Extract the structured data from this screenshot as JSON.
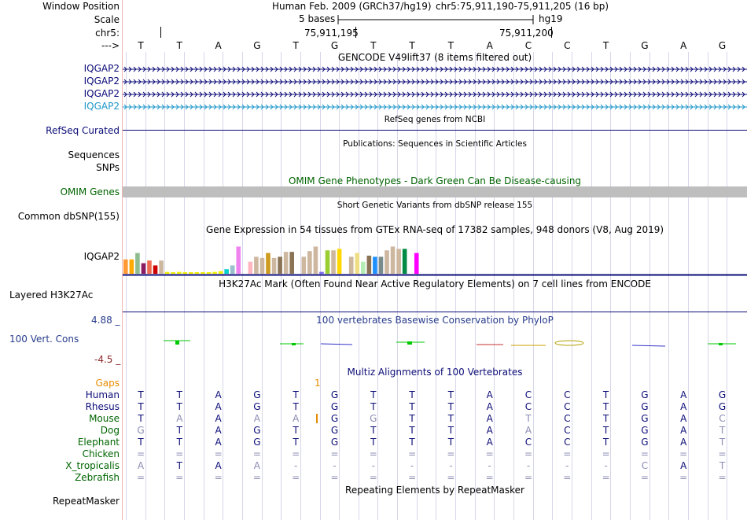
{
  "header": {
    "window_position_label": "Window Position",
    "assembly": "Human Feb. 2009 (GRCh37/hg19)",
    "position": "chr5:75,911,190-75,911,205 (16 bp)",
    "scale_label": "Scale",
    "scale_text": "5 bases",
    "scale_db": "hg19",
    "chrom_label": "chr5:",
    "coord_1": "75,911,195",
    "coord_2": "75,911,200",
    "arrow_label": "--->"
  },
  "bases": [
    "T",
    "T",
    "A",
    "G",
    "T",
    "G",
    "T",
    "T",
    "T",
    "A",
    "C",
    "C",
    "T",
    "G",
    "A",
    "G"
  ],
  "tracks": {
    "gencode_title": "GENCODE V49lift37 (8 items filtered out)",
    "gencode_genes": [
      "IQGAP2",
      "IQGAP2",
      "IQGAP2",
      "IQGAP2"
    ],
    "refseq_label": "RefSeq Curated",
    "refseq_title": "RefSeq genes from NCBI",
    "pubs_title": "Publications: Sequences in Scientific Articles",
    "sequences_label": "Sequences",
    "snps_label": "SNPs",
    "omim_title": "OMIM Gene Phenotypes - Dark Green Can Be Disease-causing",
    "omim_label": "OMIM Genes",
    "dbsnp_title": "Short Genetic Variants from dbSNP release 155",
    "dbsnp_label": "Common dbSNP(155)",
    "gtex_title": "Gene Expression in 54 tissues from GTEx RNA-seq of 17382 samples, 948 donors (V8, Aug 2019)",
    "gtex_label": "IQGAP2",
    "h3k27_title": "H3K27Ac Mark (Often Found Near Active Regulatory Elements) on 7 cell lines from ENCODE",
    "h3k27_label": "Layered H3K27Ac",
    "phylop_title": "100 vertebrates Basewise Conservation by PhyloP",
    "phylop_max": "4.88 _",
    "phylop_label": "100 Vert. Cons",
    "phylop_min": "-4.5 _",
    "multiz_title": "Multiz Alignments of 100 Vertebrates",
    "gaps_label": "Gaps",
    "gaps_value": "1",
    "rmsk_title": "Repeating Elements by RepeatMasker",
    "rmsk_label": "RepeatMasker"
  },
  "colors": {
    "gene_dark": "#0c0c78",
    "gene_light": "#1e96c8",
    "refseq": "#0c0c78",
    "omim_label": "#006400",
    "omim_bar": "#bebebe",
    "phylop_title": "#283c8c",
    "phylop_max": "#283c8c",
    "phylop_min": "#8c2828",
    "species_label": "#0c0c78",
    "gaps": "#e68c00",
    "grid": "#d6d6ea"
  },
  "gtex_bars": [
    {
      "color": "#ff9933",
      "level": 0.38
    },
    {
      "color": "#ffaa00",
      "level": 0.38
    },
    {
      "color": "#8fbc8f",
      "level": 0.55
    },
    {
      "color": "#8b1c62",
      "level": 0.28
    },
    {
      "color": "#ee6a50",
      "level": 0.35
    },
    {
      "color": "#cd0000",
      "level": 0.22
    },
    {
      "color": "#cdb79e",
      "level": 0.35
    },
    {
      "color": "#eeee00",
      "level": 0.05
    },
    {
      "color": "#eeee00",
      "level": 0.04
    },
    {
      "color": "#eeee00",
      "level": 0.05
    },
    {
      "color": "#eeee00",
      "level": 0.03
    },
    {
      "color": "#eeee00",
      "level": 0.03
    },
    {
      "color": "#eeee00",
      "level": 0.03
    },
    {
      "color": "#eeee00",
      "level": 0.04
    },
    {
      "color": "#eeee00",
      "level": 0.04
    },
    {
      "color": "#eeee00",
      "level": 0.05
    },
    {
      "color": "#eeee00",
      "level": 0.07
    },
    {
      "color": "#00cdcd",
      "level": 0.12
    },
    {
      "color": "#9ac0cd",
      "level": 0.22
    },
    {
      "color": "#ee82ee",
      "level": 0.72
    },
    {
      "color": "#ffffff",
      "level": 0.0
    },
    {
      "color": "#ffb6c1",
      "level": 0.32
    },
    {
      "color": "#cdb79e",
      "level": 0.45
    },
    {
      "color": "#cdb79e",
      "level": 0.42
    },
    {
      "color": "#cd9b1d",
      "level": 0.55
    },
    {
      "color": "#cdb79e",
      "level": 0.42
    },
    {
      "color": "#8b7355",
      "level": 0.45
    },
    {
      "color": "#cdb79e",
      "level": 0.58
    },
    {
      "color": "#8b7355",
      "level": 0.58
    },
    {
      "color": "#ffffff",
      "level": 0.0
    },
    {
      "color": "#cdb79e",
      "level": 0.45
    },
    {
      "color": "#cdb79e",
      "level": 0.6
    },
    {
      "color": "#cdb79e",
      "level": 0.72
    },
    {
      "color": "#7a67ee",
      "level": 0.05
    },
    {
      "color": "#9acd32",
      "level": 0.62
    },
    {
      "color": "#cdb79e",
      "level": 0.62
    },
    {
      "color": "#ffd700",
      "level": 0.66
    },
    {
      "color": "#ffffff",
      "level": 0.0
    },
    {
      "color": "#cdb79e",
      "level": 0.45
    },
    {
      "color": "#eedd82",
      "level": 0.55
    },
    {
      "color": "#b4eeb4",
      "level": 0.32
    },
    {
      "color": "#8b7355",
      "level": 0.48
    },
    {
      "color": "#1e90ff",
      "level": 0.45
    },
    {
      "color": "#7a8b8b",
      "level": 0.45
    },
    {
      "color": "#cdb79e",
      "level": 0.62
    },
    {
      "color": "#cdb79e",
      "level": 0.72
    },
    {
      "color": "#cdb79e",
      "level": 0.66
    },
    {
      "color": "#008b45",
      "level": 0.66
    },
    {
      "color": "#ffffff",
      "level": 0.0
    },
    {
      "color": "#ff00ff",
      "level": 0.55
    }
  ],
  "species": [
    {
      "name": "Human",
      "bases": [
        "T",
        "T",
        "A",
        "G",
        "T",
        "G",
        "T",
        "T",
        "T",
        "A",
        "C",
        "C",
        "T",
        "G",
        "A",
        "G"
      ]
    },
    {
      "name": "Rhesus",
      "bases": [
        "T",
        "T",
        "A",
        "G",
        "T",
        "G",
        "T",
        "T",
        "T",
        "A",
        "C",
        "C",
        "T",
        "G",
        "A",
        "G"
      ]
    },
    {
      "name": "Mouse",
      "bases": [
        "T",
        "A",
        "A",
        "A",
        "A",
        "G",
        "G",
        "T",
        "T",
        "A",
        "T",
        "C",
        "T",
        "G",
        "A",
        "C"
      ]
    },
    {
      "name": "Dog",
      "bases": [
        "G",
        "T",
        "A",
        "G",
        "T",
        "G",
        "T",
        "T",
        "T",
        "A",
        "A",
        "C",
        "T",
        "G",
        "A",
        "T"
      ]
    },
    {
      "name": "Elephant",
      "bases": [
        "T",
        "T",
        "A",
        "G",
        "T",
        "G",
        "T",
        "T",
        "T",
        "A",
        "C",
        "C",
        "T",
        "G",
        "A",
        "T"
      ]
    },
    {
      "name": "Chicken",
      "bases": [
        "=",
        "=",
        "=",
        "=",
        "=",
        "=",
        "=",
        "=",
        "=",
        "=",
        "=",
        "=",
        "=",
        "=",
        "=",
        "="
      ]
    },
    {
      "name": "X_tropicalis",
      "bases": [
        "A",
        "T",
        "A",
        "A",
        "-",
        "-",
        "-",
        "-",
        "-",
        "-",
        "-",
        "-",
        "-",
        "C",
        "A",
        "T"
      ]
    },
    {
      "name": "Zebrafish",
      "bases": [
        "=",
        "=",
        "=",
        "=",
        "=",
        "=",
        "=",
        "=",
        "=",
        "=",
        "=",
        "=",
        "=",
        "=",
        "=",
        "="
      ]
    }
  ]
}
